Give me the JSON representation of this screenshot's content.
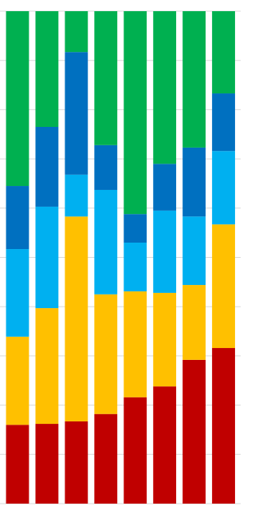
{
  "chart_data": {
    "type": "stacked_bar",
    "categories": [
      null,
      null,
      null,
      null,
      null,
      null,
      null,
      null
    ],
    "series": [
      {
        "color": "#c00000",
        "values": [
          16.0,
          16.2,
          16.7,
          18.2,
          21.6,
          23.8,
          29.2,
          31.6
        ]
      },
      {
        "color": "#ffc000",
        "values": [
          17.9,
          23.5,
          41.6,
          24.3,
          21.5,
          19.0,
          15.2,
          25.1
        ]
      },
      {
        "color": "#00b0f0",
        "values": [
          17.8,
          20.6,
          8.5,
          21.2,
          9.9,
          16.7,
          13.9,
          14.9
        ]
      },
      {
        "color": "#0070c0",
        "values": [
          12.8,
          16.2,
          24.9,
          9.1,
          5.8,
          9.5,
          14.0,
          11.7
        ]
      },
      {
        "color": "#00b050",
        "values": [
          35.5,
          23.5,
          8.3,
          27.2,
          41.2,
          31.0,
          27.7,
          16.7
        ]
      }
    ],
    "ylim": [
      0,
      100
    ],
    "yticks": [
      0,
      10,
      20,
      30,
      40,
      50,
      60,
      70,
      80,
      90,
      100
    ],
    "grid": true
  }
}
